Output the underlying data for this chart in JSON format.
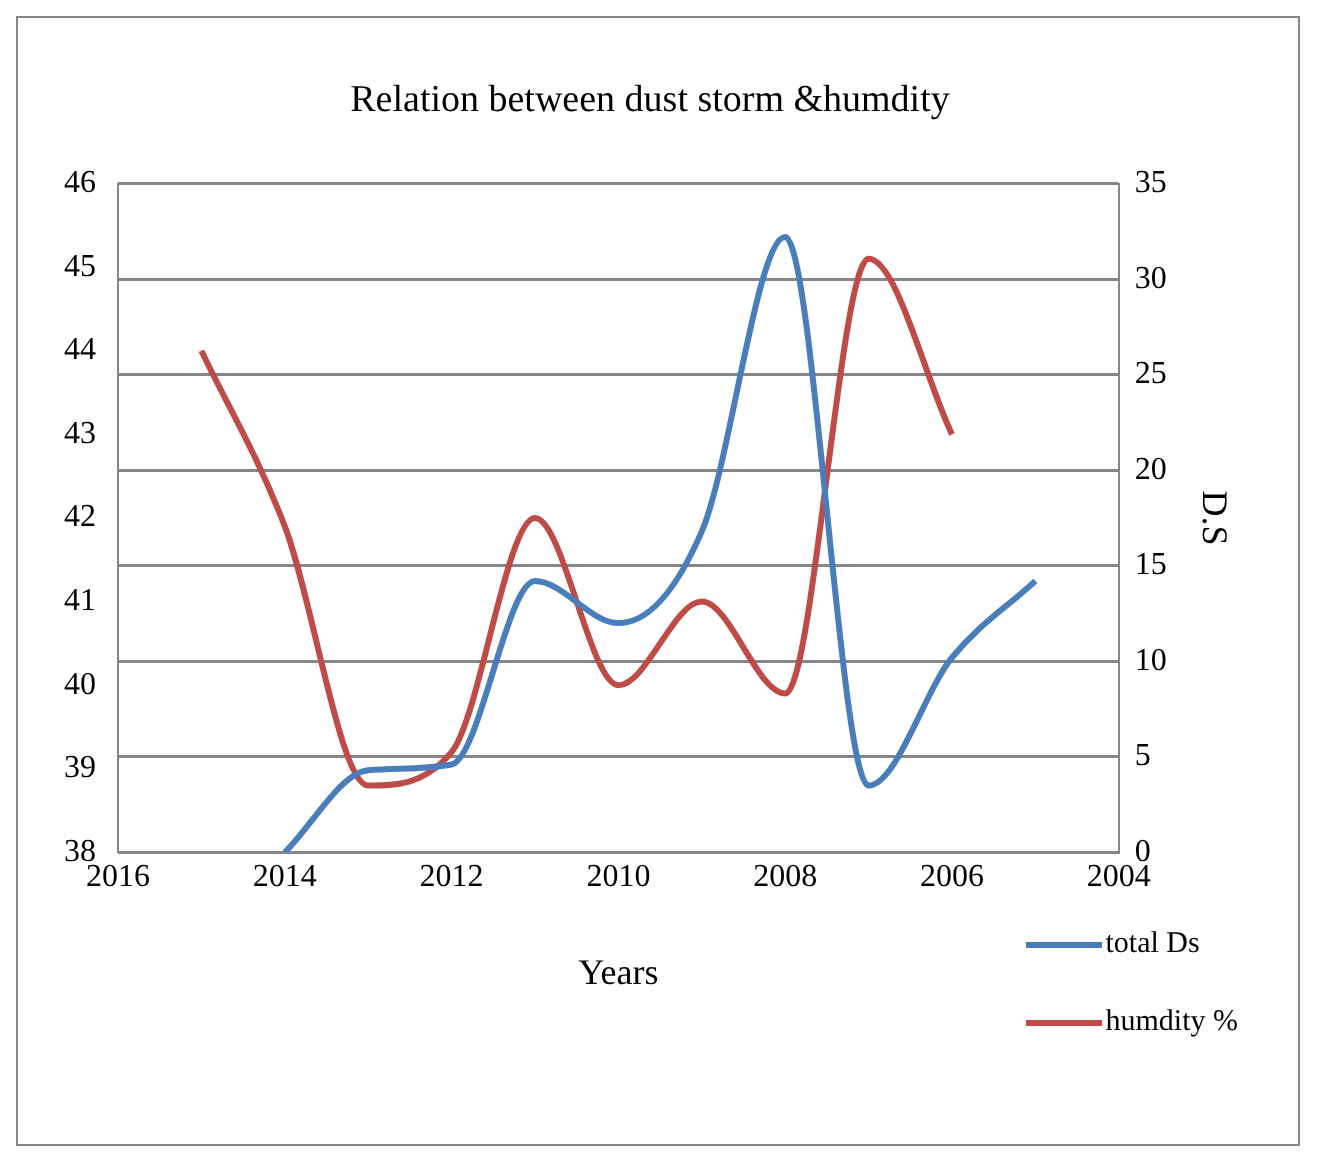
{
  "chart_data": {
    "type": "line",
    "title": "Relation between dust storm &humdity",
    "xlabel": "Years",
    "y2label": "D.S",
    "xlim": [
      2016,
      2004
    ],
    "xticks": [
      2016,
      2014,
      2012,
      2010,
      2008,
      2006,
      2004
    ],
    "ylim": [
      38,
      46
    ],
    "yticks": [
      38,
      39,
      40,
      41,
      42,
      43,
      44,
      45,
      46
    ],
    "y2lim": [
      0,
      35
    ],
    "y2ticks": [
      0,
      5,
      10,
      15,
      20,
      25,
      30,
      35
    ],
    "grid": "y",
    "legend": "bottom right",
    "marker": "none",
    "line_style": "solid",
    "series": [
      {
        "name": "total Ds",
        "color": "#4a7ebb",
        "axis": "y2",
        "x": [
          2014,
          2013,
          2012,
          2011,
          2010,
          2009,
          2008,
          2007,
          2006,
          2005
        ],
        "values": [
          0,
          4.3,
          4.6,
          14.2,
          12.0,
          16.8,
          32.2,
          3.5,
          10.2,
          14.2
        ]
      },
      {
        "name": "humdity %",
        "color": "#be4b48",
        "x": [
          2015,
          2014,
          2013,
          2012,
          2011,
          2010,
          2009,
          2008,
          2007,
          2006
        ],
        "values": [
          44.0,
          41.9,
          38.8,
          39.2,
          42.0,
          40.0,
          41.0,
          39.9,
          45.1,
          43.0
        ]
      }
    ]
  }
}
